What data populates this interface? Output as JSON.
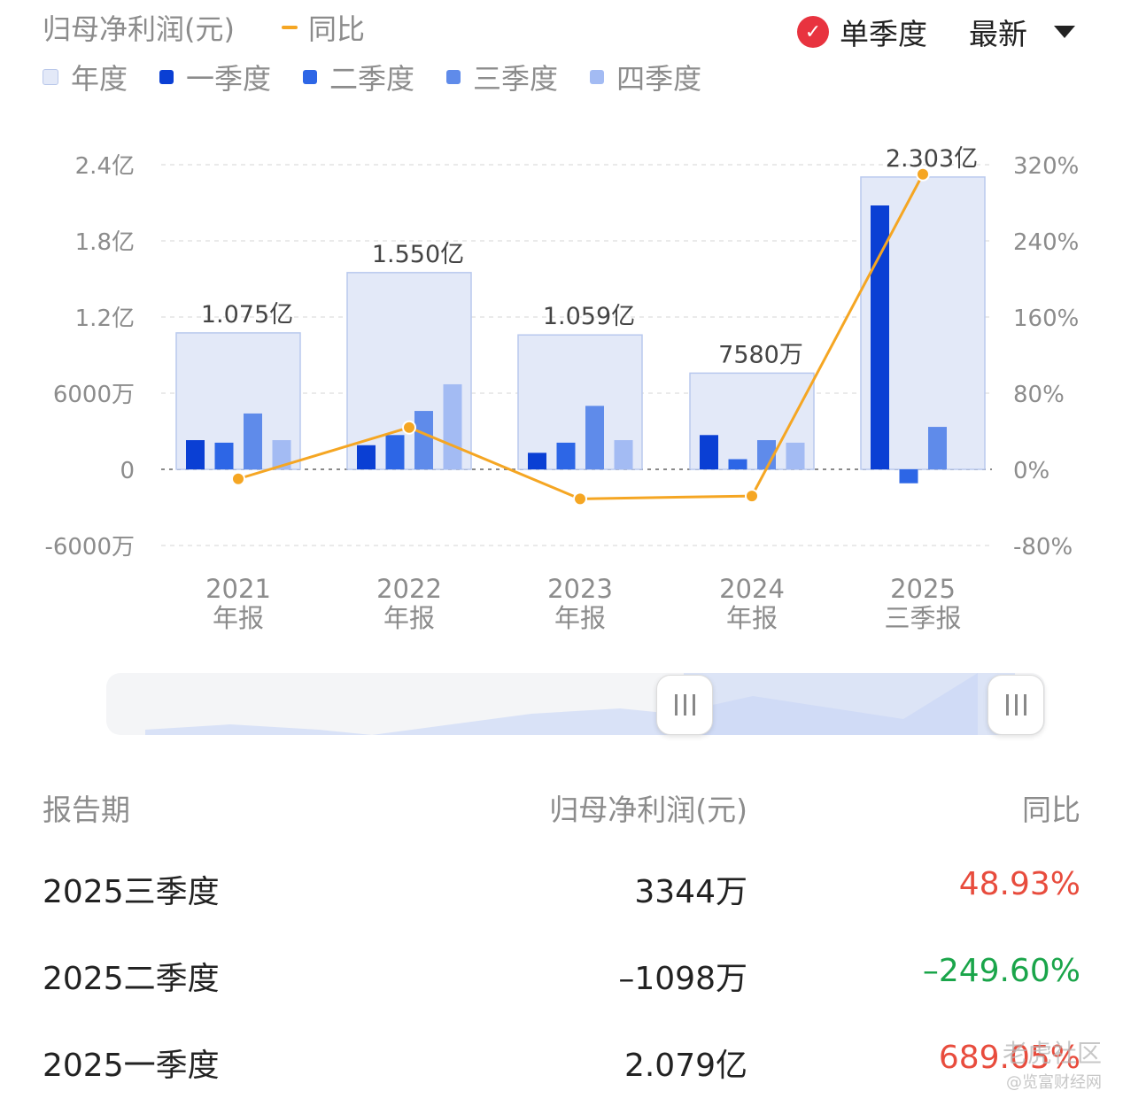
{
  "header": {
    "title": "归母净利润(元)",
    "line_legend": "同比",
    "toggle_label": "单季度",
    "dropdown_label": "最新"
  },
  "legend": [
    {
      "label": "年度",
      "color": "#e3e9f8"
    },
    {
      "label": "一季度",
      "color": "#0a3fd4"
    },
    {
      "label": "二季度",
      "color": "#2d66e6"
    },
    {
      "label": "三季度",
      "color": "#5f8bea"
    },
    {
      "label": "四季度",
      "color": "#a3bbf3"
    }
  ],
  "colors": {
    "line": "#f5a623",
    "toggle_red": "#e8333f",
    "positive": "#e84c3d",
    "negative": "#1aa54a"
  },
  "chart_data": {
    "type": "bar",
    "categories": [
      "2021\n年报",
      "2022\n年报",
      "2023\n年报",
      "2024\n年报",
      "2025\n三季报"
    ],
    "y_left": {
      "ticks": [
        "2.4亿",
        "1.8亿",
        "1.2亿",
        "6000万",
        "0",
        "-6000万"
      ],
      "range": [
        -60000000,
        240000000
      ],
      "unit": "元"
    },
    "y_right": {
      "ticks": [
        "320%",
        "240%",
        "160%",
        "80%",
        "0%",
        "-80%"
      ],
      "range": [
        -80,
        320
      ]
    },
    "annual": {
      "values": [
        107500000,
        155000000,
        105900000,
        75800000,
        230300000
      ],
      "labels": [
        "1.075亿",
        "1.550亿",
        "1.059亿",
        "7580万",
        "2.303亿"
      ]
    },
    "series": [
      {
        "name": "一季度",
        "values": [
          23000000,
          19000000,
          13000000,
          27000000,
          207900000
        ]
      },
      {
        "name": "二季度",
        "values": [
          21000000,
          27000000,
          21000000,
          8000000,
          -10980000
        ]
      },
      {
        "name": "三季度",
        "values": [
          44000000,
          46000000,
          50000000,
          23000000,
          33440000
        ]
      },
      {
        "name": "四季度",
        "values": [
          23000000,
          67000000,
          23000000,
          21000000,
          null
        ]
      }
    ],
    "yoy": {
      "name": "同比",
      "values": [
        -10,
        44,
        -31,
        -28,
        310
      ]
    },
    "grid": true
  },
  "slider": {
    "selection": [
      0.6,
      0.95
    ]
  },
  "table": {
    "headers": [
      "报告期",
      "归母净利润(元)",
      "同比"
    ],
    "rows": [
      {
        "period": "2025三季度",
        "value": "3344万",
        "yoy": "48.93%",
        "trend": "up"
      },
      {
        "period": "2025二季度",
        "value": "–1098万",
        "yoy": "–249.60%",
        "trend": "down"
      },
      {
        "period": "2025一季度",
        "value": "2.079亿",
        "yoy": "689.05%",
        "trend": "up"
      }
    ]
  },
  "watermark": {
    "line1": "老虎社区",
    "line2": "@览富财经网"
  }
}
